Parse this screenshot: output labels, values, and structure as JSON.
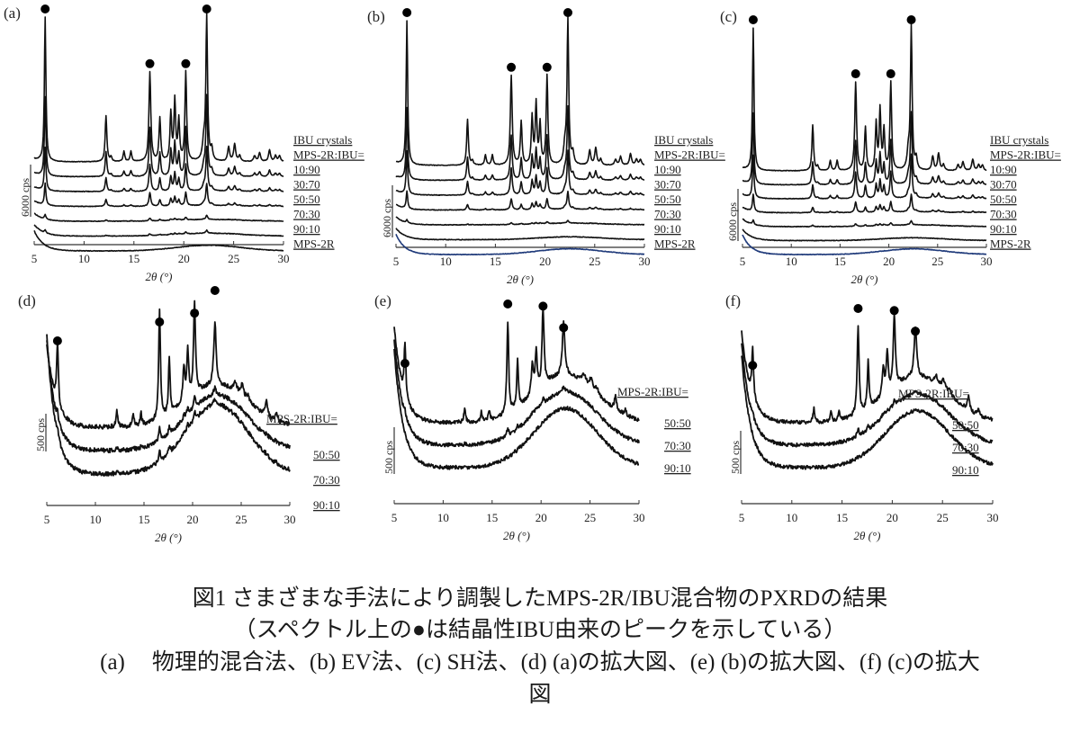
{
  "chart_data": [
    {
      "type": "line",
      "panel_label": "(a)",
      "xlabel": "2θ (°)",
      "xlim": [
        5,
        30
      ],
      "xticks": [
        "5",
        "10",
        "15",
        "20",
        "25",
        "30"
      ],
      "scale_bar_label": "6000 cps",
      "legend_header": "MPS-2R:IBU=",
      "marker_peaks_2theta": [
        6.1,
        16.6,
        20.2,
        22.3
      ],
      "series": [
        {
          "name": "IBU crystals",
          "intensity": 1.0,
          "amorphous": 0.0
        },
        {
          "name": "10:90",
          "intensity": 0.55,
          "amorphous": 0.05
        },
        {
          "name": "30:70",
          "intensity": 0.3,
          "amorphous": 0.1
        },
        {
          "name": "50:50",
          "intensity": 0.15,
          "amorphous": 0.15
        },
        {
          "name": "70:30",
          "intensity": 0.03,
          "amorphous": 0.3
        },
        {
          "name": "90:10",
          "intensity": 0.02,
          "amorphous": 0.5
        },
        {
          "name": "MPS-2R",
          "intensity": 0.0,
          "amorphous": 1.0
        }
      ]
    },
    {
      "type": "line",
      "panel_label": "(b)",
      "xlabel": "2θ (°)",
      "xlim": [
        5,
        30
      ],
      "xticks": [
        "5",
        "10",
        "15",
        "20",
        "25",
        "30"
      ],
      "scale_bar_label": "6000 cps",
      "legend_header": "MPS-2R:IBU=",
      "marker_peaks_2theta": [
        6.1,
        16.6,
        20.2,
        22.3
      ],
      "series": [
        {
          "name": "IBU crystals",
          "intensity": 1.0,
          "amorphous": 0.0
        },
        {
          "name": "10:90",
          "intensity": 0.5,
          "amorphous": 0.05
        },
        {
          "name": "30:70",
          "intensity": 0.3,
          "amorphous": 0.1
        },
        {
          "name": "50:50",
          "intensity": 0.12,
          "amorphous": 0.15
        },
        {
          "name": "70:30",
          "intensity": 0.02,
          "amorphous": 0.3
        },
        {
          "name": "90:10",
          "intensity": 0.0,
          "amorphous": 0.5
        },
        {
          "name": "MPS-2R",
          "intensity": 0.0,
          "amorphous": 1.0,
          "color": "#1f3a7a"
        }
      ]
    },
    {
      "type": "line",
      "panel_label": "(c)",
      "xlabel": "2θ (°)",
      "xlim": [
        5,
        30
      ],
      "xticks": [
        "5",
        "10",
        "15",
        "20",
        "25",
        "30"
      ],
      "scale_bar_label": "6000 cps",
      "legend_header": "MPS-2R:IBU=",
      "marker_peaks_2theta": [
        6.1,
        16.6,
        20.2,
        22.3
      ],
      "series": [
        {
          "name": "IBU crystals",
          "intensity": 1.0,
          "amorphous": 0.0
        },
        {
          "name": "10:90",
          "intensity": 0.5,
          "amorphous": 0.05
        },
        {
          "name": "30:70",
          "intensity": 0.3,
          "amorphous": 0.1
        },
        {
          "name": "50:50",
          "intensity": 0.12,
          "amorphous": 0.15
        },
        {
          "name": "70:30",
          "intensity": 0.03,
          "amorphous": 0.3
        },
        {
          "name": "90:10",
          "intensity": 0.0,
          "amorphous": 0.5
        },
        {
          "name": "MPS-2R",
          "intensity": 0.0,
          "amorphous": 1.0,
          "color": "#1f3a7a"
        }
      ]
    },
    {
      "type": "line",
      "panel_label": "(d)",
      "xlabel": "2θ (°)",
      "xlim": [
        5,
        30
      ],
      "xticks": [
        "5",
        "10",
        "15",
        "20",
        "25",
        "30"
      ],
      "scale_bar_label": "500 cps",
      "legend_header": "MPS-2R:IBU=",
      "marker_peaks_2theta": [
        6.1,
        16.6,
        20.2,
        22.3
      ],
      "series": [
        {
          "name": "50:50",
          "intensity": 1.0,
          "amorphous": 0.6
        },
        {
          "name": "70:30",
          "intensity": 0.12,
          "amorphous": 0.8
        },
        {
          "name": "90:10",
          "intensity": 0.1,
          "amorphous": 1.0
        }
      ]
    },
    {
      "type": "line",
      "panel_label": "(e)",
      "xlabel": "2θ (°)",
      "xlim": [
        5,
        30
      ],
      "xticks": [
        "5",
        "10",
        "15",
        "20",
        "25",
        "30"
      ],
      "scale_bar_label": "500 cps",
      "legend_header": "MPS-2R:IBU=",
      "marker_peaks_2theta": [
        6.1,
        16.6,
        20.2,
        22.3
      ],
      "series": [
        {
          "name": "50:50",
          "intensity": 1.0,
          "amorphous": 0.8
        },
        {
          "name": "70:30",
          "intensity": 0.08,
          "amorphous": 0.9
        },
        {
          "name": "90:10",
          "intensity": 0.0,
          "amorphous": 1.0
        }
      ]
    },
    {
      "type": "line",
      "panel_label": "(f)",
      "xlabel": "2θ (°)",
      "xlim": [
        5,
        30
      ],
      "xticks": [
        "5",
        "10",
        "15",
        "20",
        "25",
        "30"
      ],
      "scale_bar_label": "500 cps",
      "legend_header": "MPS-2R:IBU=",
      "marker_peaks_2theta": [
        6.1,
        16.6,
        20.2,
        22.3
      ],
      "series": [
        {
          "name": "50:50",
          "intensity": 1.0,
          "amorphous": 0.8
        },
        {
          "name": "70:30",
          "intensity": 0.08,
          "amorphous": 0.9
        },
        {
          "name": "90:10",
          "intensity": 0.0,
          "amorphous": 1.0
        }
      ]
    }
  ],
  "caption": {
    "line1": "図1 さまざまな手法により調製したMPS-2R/IBU混合物のPXRDの結果",
    "line2": "（スペクトル上の●は結晶性IBU由来のピークを示している）",
    "line3_label": "(a)",
    "line3": "物理的混合法、(b) EV法、(c) SH法、(d) (a)の拡大図、(e) (b)の拡大図、(f) (c)の拡大",
    "line4": "図"
  },
  "colors": {
    "trace": "#111111",
    "mps_blue": "#1f3a7a"
  }
}
